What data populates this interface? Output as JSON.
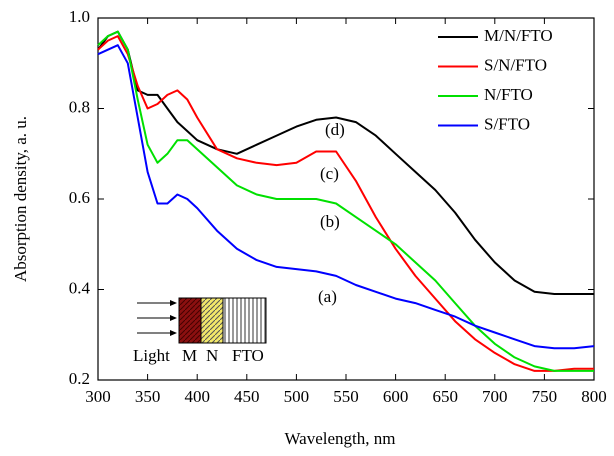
{
  "chart_data": {
    "type": "line",
    "x_label": "Wavelength, nm",
    "y_label": "Absorption density, a. u.",
    "x": [
      300,
      310,
      320,
      330,
      340,
      350,
      360,
      370,
      380,
      390,
      400,
      420,
      440,
      460,
      480,
      500,
      520,
      540,
      560,
      580,
      600,
      620,
      640,
      660,
      680,
      700,
      720,
      740,
      760,
      780,
      800
    ],
    "series": [
      {
        "name": "M/N/FTO",
        "color": "#000000",
        "values": [
          0.93,
          0.96,
          0.97,
          0.93,
          0.84,
          0.83,
          0.83,
          0.8,
          0.77,
          0.75,
          0.73,
          0.71,
          0.7,
          0.72,
          0.74,
          0.76,
          0.775,
          0.78,
          0.77,
          0.74,
          0.7,
          0.66,
          0.62,
          0.57,
          0.51,
          0.46,
          0.42,
          0.395,
          0.39,
          0.39,
          0.39
        ]
      },
      {
        "name": "S/N/FTO",
        "color": "#ff0000",
        "values": [
          0.93,
          0.95,
          0.96,
          0.92,
          0.85,
          0.8,
          0.81,
          0.83,
          0.84,
          0.82,
          0.78,
          0.71,
          0.69,
          0.68,
          0.675,
          0.68,
          0.705,
          0.705,
          0.64,
          0.56,
          0.49,
          0.43,
          0.38,
          0.33,
          0.29,
          0.26,
          0.235,
          0.22,
          0.22,
          0.225,
          0.225
        ]
      },
      {
        "name": "N/FTO",
        "color": "#00e000",
        "values": [
          0.94,
          0.96,
          0.97,
          0.93,
          0.82,
          0.72,
          0.68,
          0.7,
          0.73,
          0.73,
          0.71,
          0.67,
          0.63,
          0.61,
          0.6,
          0.6,
          0.6,
          0.59,
          0.56,
          0.53,
          0.5,
          0.46,
          0.42,
          0.37,
          0.32,
          0.28,
          0.25,
          0.23,
          0.22,
          0.22,
          0.22
        ]
      },
      {
        "name": "S/FTO",
        "color": "#0000ff",
        "values": [
          0.92,
          0.93,
          0.94,
          0.9,
          0.78,
          0.66,
          0.59,
          0.59,
          0.61,
          0.6,
          0.58,
          0.53,
          0.49,
          0.465,
          0.45,
          0.445,
          0.44,
          0.43,
          0.41,
          0.395,
          0.38,
          0.37,
          0.355,
          0.34,
          0.32,
          0.305,
          0.29,
          0.275,
          0.27,
          0.27,
          0.275
        ]
      }
    ],
    "xlim": [
      300,
      800
    ],
    "ylim": [
      0.2,
      1.0
    ],
    "xticks": [
      300,
      350,
      400,
      450,
      500,
      550,
      600,
      650,
      700,
      750,
      800
    ],
    "yticks": [
      0.2,
      0.4,
      0.6,
      0.8,
      {
        "value": 1.0,
        "label": "1.0"
      }
    ],
    "legend": "upper right",
    "annotations": [
      "(a)",
      "(b)",
      "(c)",
      "(d)"
    ],
    "inset_labels": [
      "Light",
      "M",
      "N",
      "FTO"
    ]
  }
}
